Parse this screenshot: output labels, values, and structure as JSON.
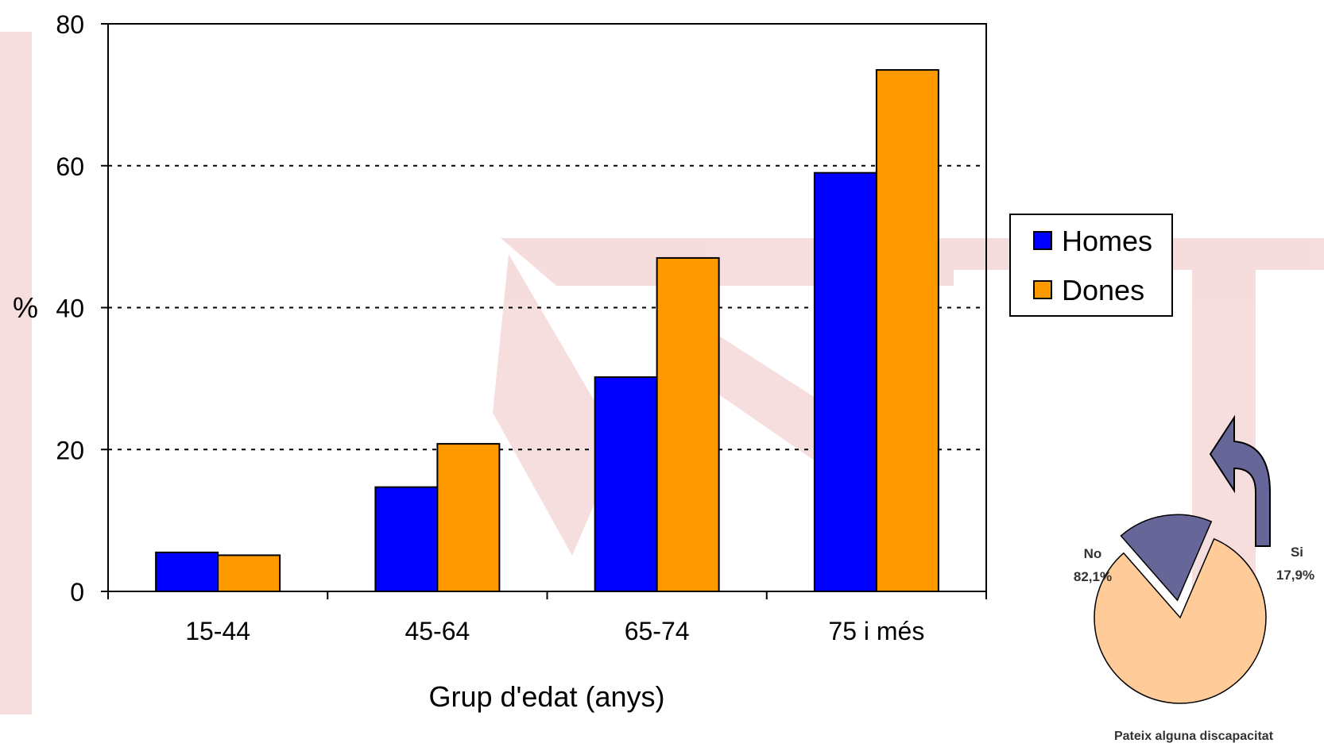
{
  "chart_data": [
    {
      "type": "bar",
      "categories": [
        "15-44",
        "45-64",
        "65-74",
        "75 i més"
      ],
      "series": [
        {
          "name": "Homes",
          "values": [
            5.5,
            14.7,
            30.2,
            59.0
          ],
          "color": "#0000ff"
        },
        {
          "name": "Dones",
          "values": [
            5.1,
            20.8,
            47.0,
            73.5
          ],
          "color": "#ff9900"
        }
      ],
      "ylim": [
        0,
        80
      ],
      "yticks": [
        0,
        20,
        40,
        60,
        80
      ],
      "ylabel": "%",
      "xlabel": "Grup d'edat (anys)",
      "grid": true,
      "legend": "right"
    },
    {
      "type": "pie",
      "title": "Pateix alguna discapacitat",
      "slices": [
        {
          "label": "No",
          "value": 82.1,
          "value_label": "82,1%",
          "color": "#ffcc99"
        },
        {
          "label": "Si",
          "value": 17.9,
          "value_label": "17,9%",
          "color": "#666699",
          "exploded": true
        }
      ]
    }
  ]
}
